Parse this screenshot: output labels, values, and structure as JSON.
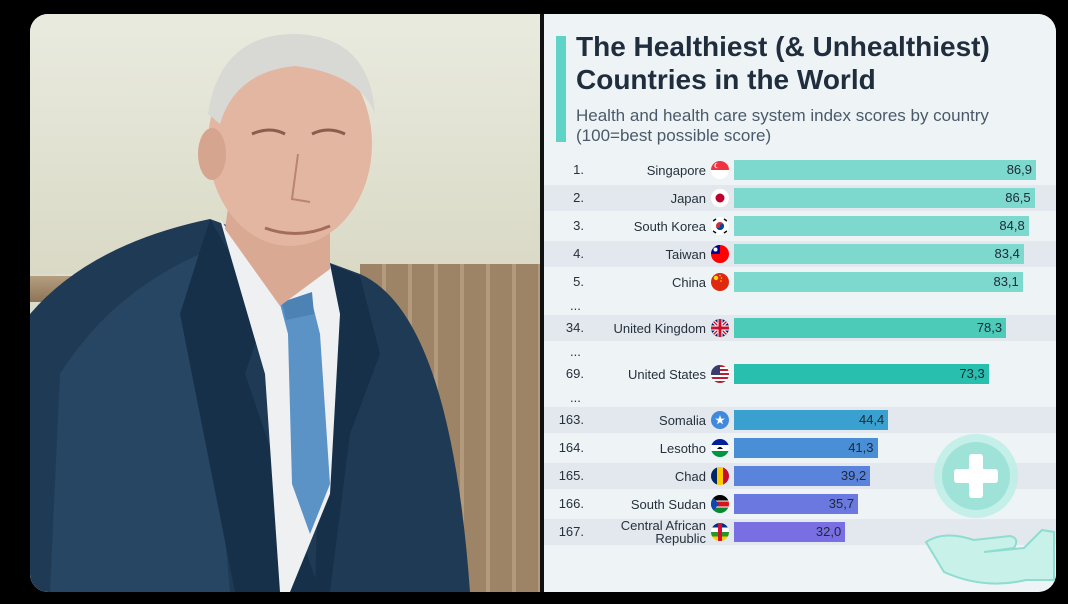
{
  "chart_data": {
    "type": "bar",
    "orientation": "horizontal",
    "title": "The Healthiest (& Unhealthiest) Countries in the World",
    "subtitle": "Health and health care system index scores by country (100=best possible score)",
    "xlim": [
      0,
      100
    ],
    "grid": false,
    "legend": "none",
    "rows": [
      {
        "rank": "1.",
        "country": [
          "Singapore"
        ],
        "value": 86.9,
        "label": "86,9",
        "color": "#7dd8ce",
        "flag": "sg"
      },
      {
        "rank": "2.",
        "country": [
          "Japan"
        ],
        "value": 86.5,
        "label": "86,5",
        "color": "#7dd8ce",
        "flag": "jp"
      },
      {
        "rank": "3.",
        "country": [
          "South Korea"
        ],
        "value": 84.8,
        "label": "84,8",
        "color": "#7dd8ce",
        "flag": "kr"
      },
      {
        "rank": "4.",
        "country": [
          "Taiwan"
        ],
        "value": 83.4,
        "label": "83,4",
        "color": "#7dd8ce",
        "flag": "tw"
      },
      {
        "rank": "5.",
        "country": [
          "China"
        ],
        "value": 83.1,
        "label": "83,1",
        "color": "#7dd8ce",
        "flag": "cn"
      },
      {
        "ellipsis": "..."
      },
      {
        "rank": "34.",
        "country": [
          "United Kingdom"
        ],
        "value": 78.3,
        "label": "78,3",
        "color": "#4ccbb9",
        "flag": "gb"
      },
      {
        "ellipsis": "..."
      },
      {
        "rank": "69.",
        "country": [
          "United States"
        ],
        "value": 73.3,
        "label": "73,3",
        "color": "#28bfae",
        "flag": "us"
      },
      {
        "ellipsis": "..."
      },
      {
        "rank": "163.",
        "country": [
          "Somalia"
        ],
        "value": 44.4,
        "label": "44,4",
        "color": "#3aa0cf",
        "flag": "so"
      },
      {
        "rank": "164.",
        "country": [
          "Lesotho"
        ],
        "value": 41.3,
        "label": "41,3",
        "color": "#4a8fd6",
        "flag": "ls"
      },
      {
        "rank": "165.",
        "country": [
          "Chad"
        ],
        "value": 39.2,
        "label": "39,2",
        "color": "#5a83dc",
        "flag": "td"
      },
      {
        "rank": "166.",
        "country": [
          "South Sudan"
        ],
        "value": 35.7,
        "label": "35,7",
        "color": "#6b78e0",
        "flag": "ss"
      },
      {
        "rank": "167.",
        "country": [
          "Central African",
          "Republic"
        ],
        "value": 32.0,
        "label": "32,0",
        "color": "#7a6ee3",
        "flag": "cf"
      }
    ]
  },
  "colors": {
    "accent": "#5fd3c6",
    "title": "#1f2d3d"
  },
  "icons": {
    "decoration": "health-cross-hand-icon"
  }
}
